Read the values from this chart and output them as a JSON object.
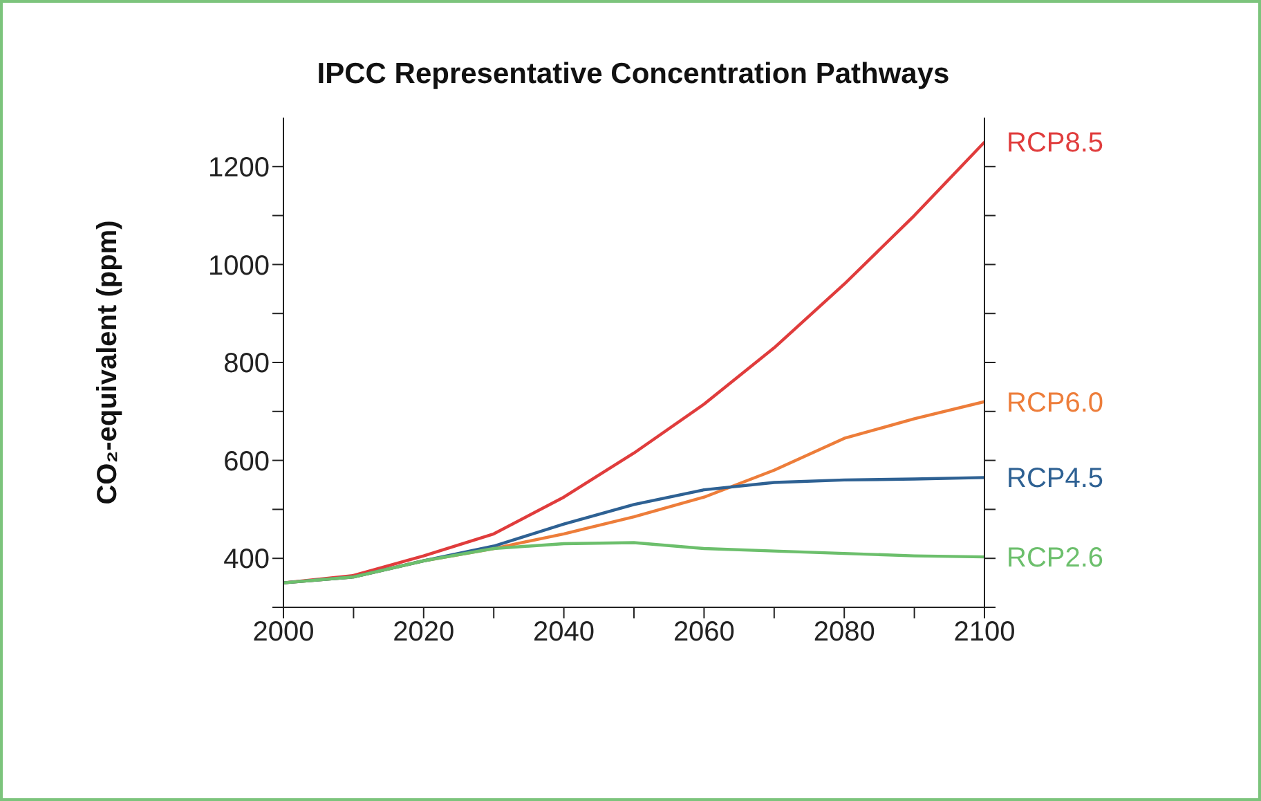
{
  "chart_data": {
    "type": "line",
    "title": "IPCC Representative Concentration Pathways",
    "ylabel": "CO₂-equivalent (ppm)",
    "x": [
      2000,
      2010,
      2020,
      2030,
      2040,
      2050,
      2060,
      2070,
      2080,
      2090,
      2100
    ],
    "xlim": [
      2000,
      2100
    ],
    "xticks": [
      2000,
      {
        "value": 2010,
        "label": null
      },
      2020,
      {
        "value": 2030,
        "label": null
      },
      2040,
      {
        "value": 2050,
        "label": null
      },
      2060,
      {
        "value": 2070,
        "label": null
      },
      2080,
      {
        "value": 2090,
        "label": null
      },
      2100
    ],
    "ylim": [
      300,
      1300
    ],
    "yticks": [
      {
        "value": 300,
        "label": null
      },
      400,
      {
        "value": 500,
        "label": null
      },
      600,
      {
        "value": 700,
        "label": null
      },
      800,
      {
        "value": 900,
        "label": null
      },
      1000,
      {
        "value": 1100,
        "label": null
      },
      1200
    ],
    "grid": false,
    "legend": false,
    "marker": "none",
    "line_style": "solid",
    "series": [
      {
        "name": "RCP8.5",
        "color": "#e03c3c",
        "values": [
          350,
          365,
          405,
          450,
          525,
          615,
          715,
          830,
          960,
          1100,
          1250
        ]
      },
      {
        "name": "RCP6.0",
        "color": "#ed7d3a",
        "values": [
          350,
          362,
          395,
          420,
          450,
          485,
          525,
          580,
          645,
          685,
          720
        ]
      },
      {
        "name": "RCP4.5",
        "color": "#2e6193",
        "values": [
          350,
          362,
          395,
          425,
          470,
          510,
          540,
          555,
          560,
          562,
          565
        ]
      },
      {
        "name": "RCP2.6",
        "color": "#6cbf6c",
        "values": [
          350,
          362,
          395,
          420,
          430,
          432,
          420,
          415,
          410,
          405,
          403
        ]
      }
    ]
  }
}
